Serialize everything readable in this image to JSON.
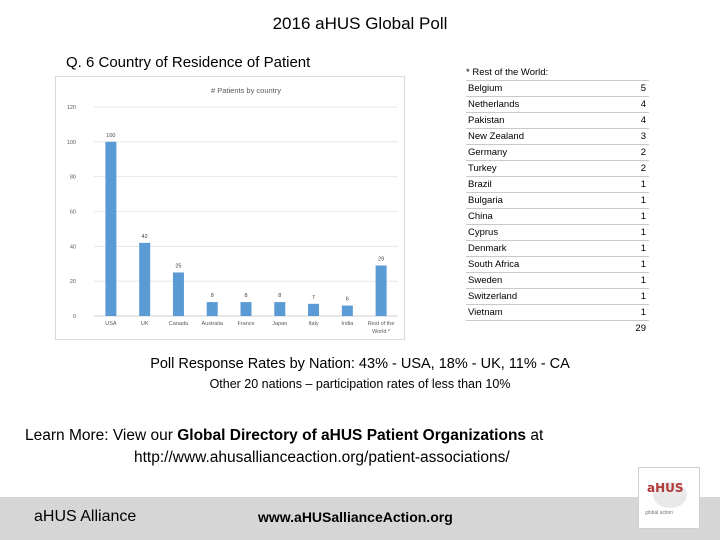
{
  "title": "2016 aHUS Global Poll",
  "question": "Q. 6  Country of Residence of Patient",
  "chart_data": {
    "type": "bar",
    "title": "# Patients by country",
    "categories": [
      "USA",
      "UK",
      "Canada",
      "Australia",
      "France",
      "Japan",
      "Italy",
      "India",
      "Rest of the World *"
    ],
    "values": [
      100,
      42,
      25,
      8,
      8,
      8,
      7,
      6,
      29
    ],
    "ylim": [
      0,
      120
    ],
    "yticks": [
      0,
      20,
      40,
      60,
      80,
      100,
      120
    ],
    "xlabel": "",
    "ylabel": "",
    "grid": true,
    "color": "#5b9bd5"
  },
  "rest_of_world": {
    "header": "* Rest of the World:",
    "rows": [
      {
        "country": "Belgium",
        "count": "5"
      },
      {
        "country": "Netherlands",
        "count": "4"
      },
      {
        "country": "Pakistan",
        "count": "4"
      },
      {
        "country": "New Zealand",
        "count": "3"
      },
      {
        "country": "Germany",
        "count": "2"
      },
      {
        "country": "Turkey",
        "count": "2"
      },
      {
        "country": "Brazil",
        "count": "1"
      },
      {
        "country": "Bulgaria",
        "count": "1"
      },
      {
        "country": "China",
        "count": "1"
      },
      {
        "country": "Cyprus",
        "count": "1"
      },
      {
        "country": "Denmark",
        "count": "1"
      },
      {
        "country": "South Africa",
        "count": "1"
      },
      {
        "country": "Sweden",
        "count": "1"
      },
      {
        "country": "Switzerland",
        "count": "1"
      },
      {
        "country": "Vietnam",
        "count": "1"
      }
    ],
    "total": "29"
  },
  "response_rates": {
    "line1": "Poll Response Rates by Nation:  43% - USA,  18% - UK,  11% - CA",
    "line2": "Other 20 nations – participation rates of less than 10%"
  },
  "learn_more": {
    "prefix": "Learn More:  View our ",
    "bold": "Global Directory of aHUS Patient Organizations",
    "suffix": " at",
    "url": "http://www.ahusallianceaction.org/patient-associations/"
  },
  "footer": {
    "left": "aHUS Alliance",
    "center": "www.aHUSallianceAction.org"
  },
  "logo": {
    "word": "aHUS",
    "sub": "global action"
  }
}
